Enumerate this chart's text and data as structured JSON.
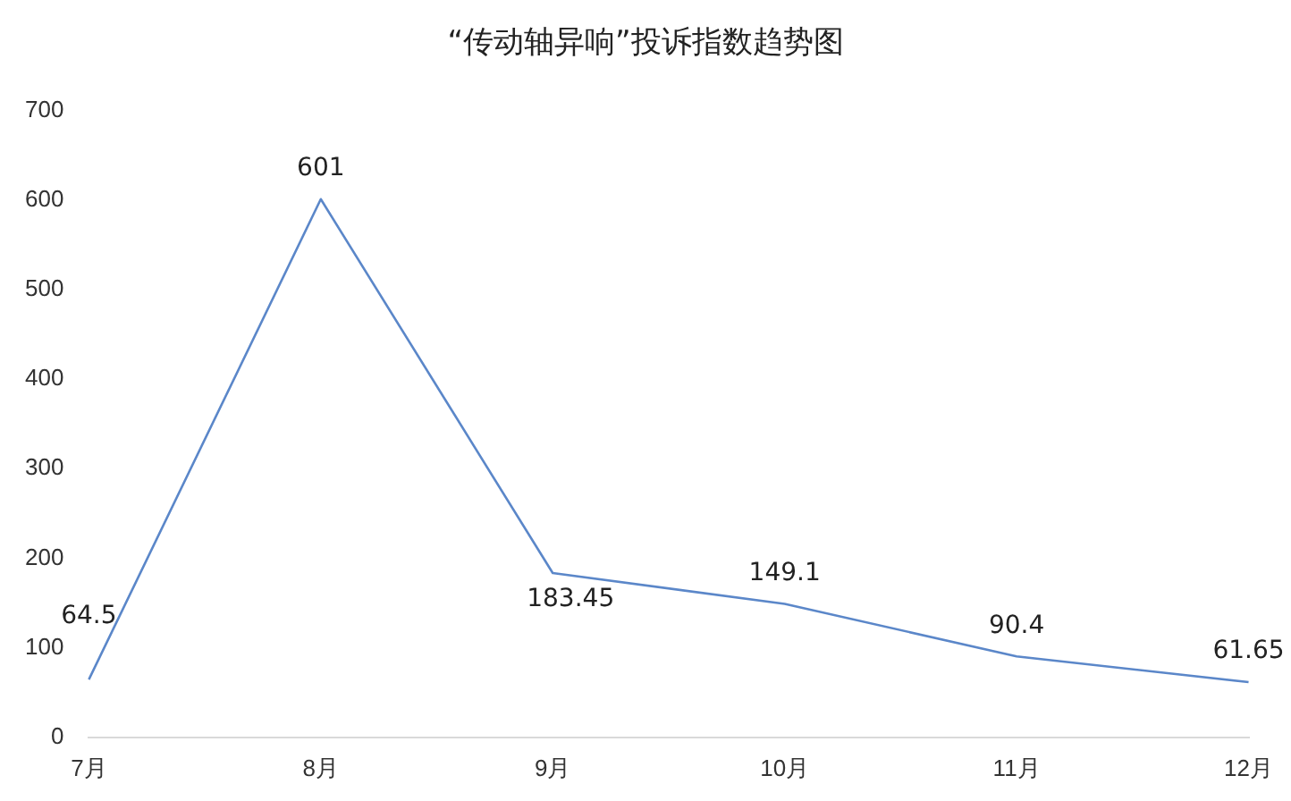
{
  "chart_data": {
    "type": "line",
    "title": "“传动轴异响”投诉指数趋势图",
    "categories": [
      "7月",
      "8月",
      "9月",
      "10月",
      "11月",
      "12月"
    ],
    "series": [
      {
        "color": "#5b87c9",
        "values": [
          64.5,
          601,
          183.45,
          149.1,
          90.4,
          61.65
        ]
      }
    ],
    "ylim": [
      0,
      700
    ],
    "yticks": [
      0,
      100,
      200,
      300,
      400,
      500,
      600,
      700
    ],
    "grid": false,
    "legend": false,
    "marker": "none",
    "line_style": "solid",
    "data_labels": true
  }
}
